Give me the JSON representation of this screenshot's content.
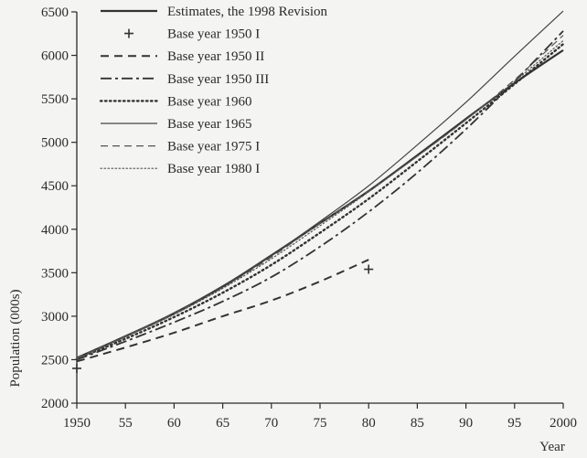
{
  "chart_data": {
    "type": "line",
    "title": "",
    "xlabel": "Year",
    "ylabel": "Population (000s)",
    "xlim": [
      1950,
      2000
    ],
    "ylim": [
      2000,
      6500
    ],
    "x_ticks": [
      1950,
      1955,
      1960,
      1965,
      1970,
      1975,
      1980,
      1985,
      1990,
      1995,
      2000
    ],
    "x_tick_labels": [
      "1950",
      "55",
      "60",
      "65",
      "70",
      "75",
      "80",
      "85",
      "90",
      "95",
      "2000"
    ],
    "y_ticks": [
      2000,
      2500,
      3000,
      3500,
      4000,
      4500,
      5000,
      5500,
      6000,
      6500
    ],
    "y_tick_labels": [
      "2000",
      "2500",
      "3000",
      "3500",
      "4000",
      "4500",
      "5000",
      "5500",
      "6000",
      "6500"
    ],
    "grid": false,
    "legend_position": "top-center",
    "series": [
      {
        "name": "Estimates, the 1998 Revision",
        "style": "solid-thick",
        "x": [
          1950,
          1955,
          1960,
          1965,
          1970,
          1975,
          1980,
          1985,
          1990,
          1995,
          2000
        ],
        "y": [
          2520,
          2770,
          3030,
          3340,
          3700,
          4070,
          4440,
          4850,
          5270,
          5680,
          6060
        ]
      },
      {
        "name": "Base year 1950 I",
        "style": "plus-marker",
        "x": [
          1950,
          1980
        ],
        "y": [
          2400,
          3540
        ]
      },
      {
        "name": "Base year 1950 II",
        "style": "dashed-thick",
        "x": [
          1950,
          1955,
          1960,
          1965,
          1970,
          1975,
          1980
        ],
        "y": [
          2480,
          2640,
          2810,
          3000,
          3180,
          3400,
          3650
        ]
      },
      {
        "name": "Base year 1950 III",
        "style": "dashdot",
        "x": [
          1950,
          1955,
          1960,
          1965,
          1970,
          1975,
          1980,
          1985,
          1990,
          1995,
          2000
        ],
        "y": [
          2500,
          2710,
          2930,
          3170,
          3450,
          3800,
          4200,
          4650,
          5150,
          5700,
          6280
        ]
      },
      {
        "name": "Base year 1960",
        "style": "dotted-thick",
        "x": [
          1950,
          1955,
          1960,
          1965,
          1970,
          1975,
          1980,
          1985,
          1990,
          1995,
          2000
        ],
        "y": [
          2510,
          2740,
          2990,
          3270,
          3590,
          3960,
          4350,
          4780,
          5220,
          5670,
          6130
        ]
      },
      {
        "name": "Base year 1965",
        "style": "solid-thin",
        "x": [
          1950,
          1955,
          1960,
          1965,
          1970,
          1975,
          1980,
          1985,
          1990,
          1995,
          2000
        ],
        "y": [
          2510,
          2770,
          3040,
          3350,
          3700,
          4090,
          4500,
          4970,
          5460,
          5990,
          6510
        ]
      },
      {
        "name": "Base year 1975 I",
        "style": "dashed-thin",
        "x": [
          1950,
          1955,
          1960,
          1965,
          1970,
          1975,
          1980,
          1985,
          1990,
          1995,
          2000
        ],
        "y": [
          2520,
          2770,
          3030,
          3330,
          3680,
          4070,
          4440,
          4840,
          5260,
          5720,
          6230
        ]
      },
      {
        "name": "Base year 1980 I",
        "style": "dotted-thin",
        "x": [
          1950,
          1955,
          1960,
          1965,
          1970,
          1975,
          1980,
          1985,
          1990,
          1995,
          2000
        ],
        "y": [
          2510,
          2760,
          3020,
          3320,
          3660,
          4040,
          4430,
          4840,
          5260,
          5700,
          6170
        ]
      }
    ]
  }
}
